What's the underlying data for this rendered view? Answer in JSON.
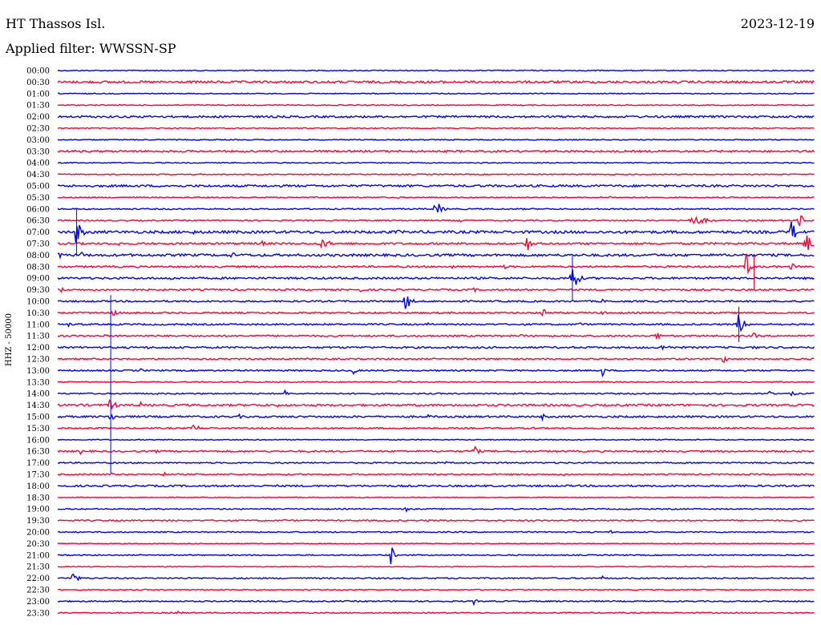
{
  "header": {
    "station": "HT Thassos Isl.",
    "date": "2023-12-19",
    "filter": "Applied filter: WWSSN-SP"
  },
  "chart_data": {
    "type": "line",
    "ylabel": "HHZ - 50000",
    "colors": [
      "#0000ff",
      "#ff0033"
    ],
    "rows": [
      {
        "label": "00:00",
        "noise": 0.6,
        "events": []
      },
      {
        "label": "00:30",
        "noise": 1.4,
        "events": []
      },
      {
        "label": "01:00",
        "noise": 0.6,
        "events": []
      },
      {
        "label": "01:30",
        "noise": 0.6,
        "events": []
      },
      {
        "label": "02:00",
        "noise": 1.2,
        "events": []
      },
      {
        "label": "02:30",
        "noise": 0.6,
        "events": []
      },
      {
        "label": "03:00",
        "noise": 0.6,
        "events": []
      },
      {
        "label": "03:30",
        "noise": 1.2,
        "events": []
      },
      {
        "label": "04:00",
        "noise": 0.6,
        "events": []
      },
      {
        "label": "04:30",
        "noise": 0.6,
        "events": []
      },
      {
        "label": "05:00",
        "noise": 1.3,
        "events": [
          [
            0.87,
            4,
            2
          ]
        ]
      },
      {
        "label": "05:30",
        "noise": 0.7,
        "events": [
          [
            0.45,
            2,
            3
          ],
          [
            0.73,
            2,
            2
          ]
        ]
      },
      {
        "label": "06:00",
        "noise": 0.8,
        "events": [
          [
            0.5,
            12,
            4
          ],
          [
            0.78,
            3,
            3
          ]
        ]
      },
      {
        "label": "06:30",
        "noise": 0.8,
        "events": [
          [
            0.84,
            6,
            12
          ],
          [
            0.53,
            3,
            3
          ],
          [
            0.98,
            12,
            3
          ]
        ]
      },
      {
        "label": "07:00",
        "noise": 1.6,
        "events": [
          [
            0.025,
            18,
            4
          ],
          [
            0.18,
            3,
            3
          ],
          [
            0.45,
            4,
            2
          ],
          [
            0.97,
            16,
            4
          ]
        ]
      },
      {
        "label": "07:30",
        "noise": 1.2,
        "events": [
          [
            0.35,
            6,
            8
          ],
          [
            0.62,
            12,
            3
          ],
          [
            0.99,
            12,
            6
          ],
          [
            0.08,
            3,
            3
          ],
          [
            0.27,
            4,
            3
          ]
        ]
      },
      {
        "label": "08:00",
        "noise": 1.5,
        "events": [
          [
            0.0,
            5,
            5
          ],
          [
            0.23,
            5,
            3
          ],
          [
            0.03,
            6,
            3
          ]
        ]
      },
      {
        "label": "08:30",
        "noise": 1.1,
        "events": [
          [
            0.91,
            20,
            3
          ],
          [
            0.97,
            5,
            4
          ],
          [
            0.52,
            3,
            3
          ],
          [
            0.59,
            4,
            2
          ]
        ]
      },
      {
        "label": "09:00",
        "noise": 1.2,
        "events": [
          [
            0.68,
            22,
            4
          ],
          [
            0.15,
            4,
            2
          ]
        ]
      },
      {
        "label": "09:30",
        "noise": 1.0,
        "events": [
          [
            0.003,
            5,
            3
          ],
          [
            0.4,
            3,
            3
          ],
          [
            0.55,
            3,
            3
          ]
        ]
      },
      {
        "label": "10:00",
        "noise": 1.0,
        "events": [
          [
            0.46,
            12,
            4
          ],
          [
            0.72,
            3,
            3
          ]
        ]
      },
      {
        "label": "10:30",
        "noise": 1.0,
        "events": [
          [
            0.07,
            5,
            6
          ],
          [
            0.64,
            11,
            3
          ],
          [
            0.72,
            3,
            3
          ]
        ]
      },
      {
        "label": "11:00",
        "noise": 1.0,
        "events": [
          [
            0.9,
            16,
            4
          ],
          [
            0.015,
            4,
            2
          ],
          [
            0.69,
            4,
            3
          ],
          [
            0.49,
            3,
            2
          ]
        ]
      },
      {
        "label": "11:30",
        "noise": 1.0,
        "events": [
          [
            0.79,
            9,
            3
          ],
          [
            0.61,
            3,
            4
          ],
          [
            0.92,
            4,
            4
          ],
          [
            0.06,
            3,
            2
          ]
        ]
      },
      {
        "label": "12:00",
        "noise": 1.1,
        "events": [
          [
            0.8,
            4,
            8
          ],
          [
            0.92,
            3,
            3
          ],
          [
            0.12,
            3,
            2
          ]
        ]
      },
      {
        "label": "12:30",
        "noise": 0.9,
        "events": [
          [
            0.88,
            5,
            4
          ],
          [
            0.33,
            2,
            3
          ],
          [
            0.7,
            3,
            3
          ]
        ]
      },
      {
        "label": "13:00",
        "noise": 0.9,
        "events": [
          [
            0.39,
            6,
            3
          ],
          [
            0.72,
            8,
            2
          ],
          [
            0.11,
            3,
            2
          ]
        ]
      },
      {
        "label": "13:30",
        "noise": 0.7,
        "events": [
          [
            0.45,
            2,
            3
          ],
          [
            0.72,
            2,
            3
          ]
        ]
      },
      {
        "label": "14:00",
        "noise": 0.8,
        "events": [
          [
            0.3,
            6,
            2
          ],
          [
            0.97,
            4,
            3
          ],
          [
            0.13,
            3,
            2
          ],
          [
            0.94,
            4,
            2
          ]
        ]
      },
      {
        "label": "14:30",
        "noise": 1.2,
        "events": [
          [
            0.07,
            10,
            4
          ],
          [
            0.11,
            5,
            2
          ],
          [
            0.29,
            3,
            2
          ],
          [
            0.03,
            4,
            2
          ]
        ]
      },
      {
        "label": "15:00",
        "noise": 1.1,
        "events": [
          [
            0.07,
            6,
            4
          ],
          [
            0.64,
            6,
            2
          ],
          [
            0.49,
            3,
            3
          ],
          [
            0.24,
            3,
            3
          ]
        ]
      },
      {
        "label": "15:30",
        "noise": 0.9,
        "events": [
          [
            0.18,
            10,
            3
          ],
          [
            0.63,
            3,
            2
          ],
          [
            0.4,
            2,
            2
          ]
        ]
      },
      {
        "label": "16:00",
        "noise": 0.6,
        "events": []
      },
      {
        "label": "16:30",
        "noise": 1.0,
        "events": [
          [
            0.55,
            10,
            3
          ],
          [
            0.03,
            4,
            2
          ],
          [
            0.13,
            3,
            2
          ]
        ]
      },
      {
        "label": "17:00",
        "noise": 0.8,
        "events": [
          [
            0.51,
            3,
            3
          ]
        ]
      },
      {
        "label": "17:30",
        "noise": 0.8,
        "events": [
          [
            0.07,
            4,
            2
          ],
          [
            0.14,
            4,
            2
          ],
          [
            0.67,
            4,
            2
          ],
          [
            0.3,
            2,
            3
          ]
        ]
      },
      {
        "label": "18:00",
        "noise": 1.1,
        "events": []
      },
      {
        "label": "18:30",
        "noise": 0.5,
        "events": []
      },
      {
        "label": "19:00",
        "noise": 0.7,
        "events": [
          [
            0.46,
            5,
            2
          ]
        ]
      },
      {
        "label": "19:30",
        "noise": 0.8,
        "events": [
          [
            0.3,
            2,
            3
          ],
          [
            0.49,
            2,
            3
          ]
        ]
      },
      {
        "label": "20:00",
        "noise": 0.7,
        "events": [
          [
            0.73,
            3,
            2
          ]
        ]
      },
      {
        "label": "20:30",
        "noise": 0.5,
        "events": []
      },
      {
        "label": "21:00",
        "noise": 0.7,
        "events": [
          [
            0.44,
            18,
            2
          ]
        ]
      },
      {
        "label": "21:30",
        "noise": 0.5,
        "events": []
      },
      {
        "label": "22:00",
        "noise": 0.8,
        "events": [
          [
            0.02,
            8,
            4
          ],
          [
            0.72,
            3,
            2
          ]
        ]
      },
      {
        "label": "22:30",
        "noise": 0.6,
        "events": []
      },
      {
        "label": "23:00",
        "noise": 0.8,
        "events": [
          [
            0.55,
            6,
            2
          ]
        ]
      },
      {
        "label": "23:30",
        "noise": 0.7,
        "events": [
          [
            0.16,
            7,
            2
          ]
        ]
      }
    ],
    "spikes": [
      {
        "row": 26,
        "x": 0.07,
        "up": 94,
        "down": 128
      },
      {
        "row": 17,
        "x": 0.92,
        "up": 14,
        "down": 28
      },
      {
        "row": 18,
        "x": 0.68,
        "up": 28,
        "down": 28
      },
      {
        "row": 22,
        "x": 0.9,
        "up": 22,
        "down": 22
      },
      {
        "row": 14,
        "x": 0.025,
        "up": 30,
        "down": 30
      }
    ]
  }
}
